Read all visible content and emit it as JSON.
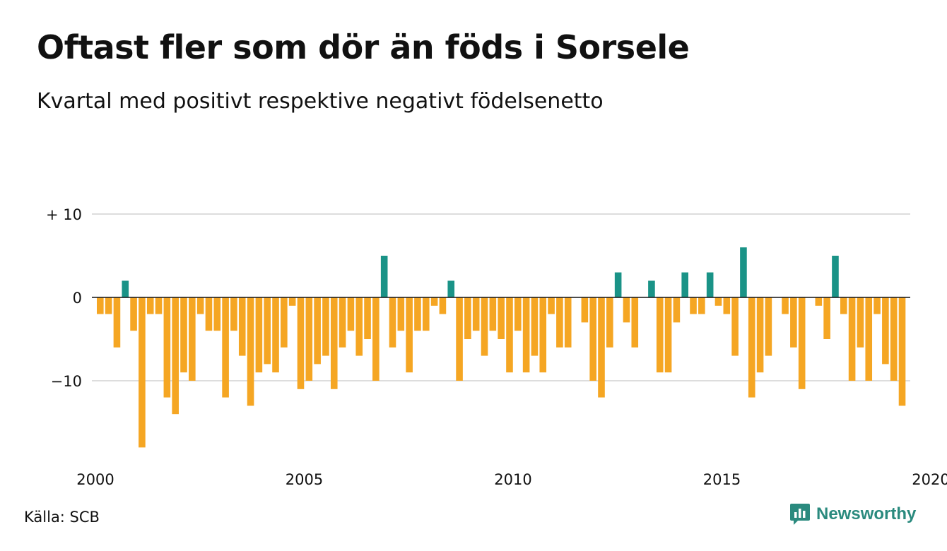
{
  "title": "Oftast fler som dör än föds i Sorsele",
  "subtitle": "Kvartal med positivt respektive negativt födelsenetto",
  "source": "Källa: SCB",
  "logo_text": "Newsworthy",
  "colors": {
    "positive": "#1a9387",
    "negative": "#f5a623",
    "grid": "#dddddd",
    "logo": "#2a8a7e"
  },
  "chart_data": {
    "type": "bar",
    "title": "Oftast fler som dör än föds i Sorsele",
    "subtitle": "Kvartal med positivt respektive negativt födelsenetto",
    "xlabel": "",
    "ylabel": "",
    "ylim": [
      -18,
      10
    ],
    "y_ticks": [
      {
        "value": 10,
        "label": "+ 10"
      },
      {
        "value": 0,
        "label": "0"
      },
      {
        "value": -10,
        "label": "−10"
      }
    ],
    "x_ticks": [
      "2000",
      "2005",
      "2010",
      "2015",
      "2020"
    ],
    "first_year": 2000,
    "values": [
      -2,
      -2,
      -6,
      2,
      -4,
      -18,
      -2,
      -2,
      -12,
      -14,
      -9,
      -10,
      -2,
      -4,
      -4,
      -12,
      -4,
      -7,
      -13,
      -9,
      -8,
      -9,
      -6,
      -1,
      -11,
      -10,
      -8,
      -7,
      -11,
      -6,
      -4,
      -7,
      -5,
      -10,
      5,
      -6,
      -4,
      -9,
      -4,
      -4,
      -1,
      -2,
      2,
      -10,
      -5,
      -4,
      -7,
      -4,
      -5,
      -9,
      -4,
      -9,
      -7,
      -9,
      -2,
      -6,
      -6,
      0,
      -3,
      -10,
      -12,
      -6,
      3,
      -3,
      -6,
      0,
      2,
      -9,
      -9,
      -3,
      3,
      -2,
      -2,
      3,
      -1,
      -2,
      -7,
      6,
      -12,
      -9,
      -7,
      0,
      -2,
      -6,
      -11,
      0,
      -1,
      -5,
      5,
      -2,
      -10,
      -6,
      -10,
      -2,
      -8,
      -10,
      -13
    ]
  }
}
